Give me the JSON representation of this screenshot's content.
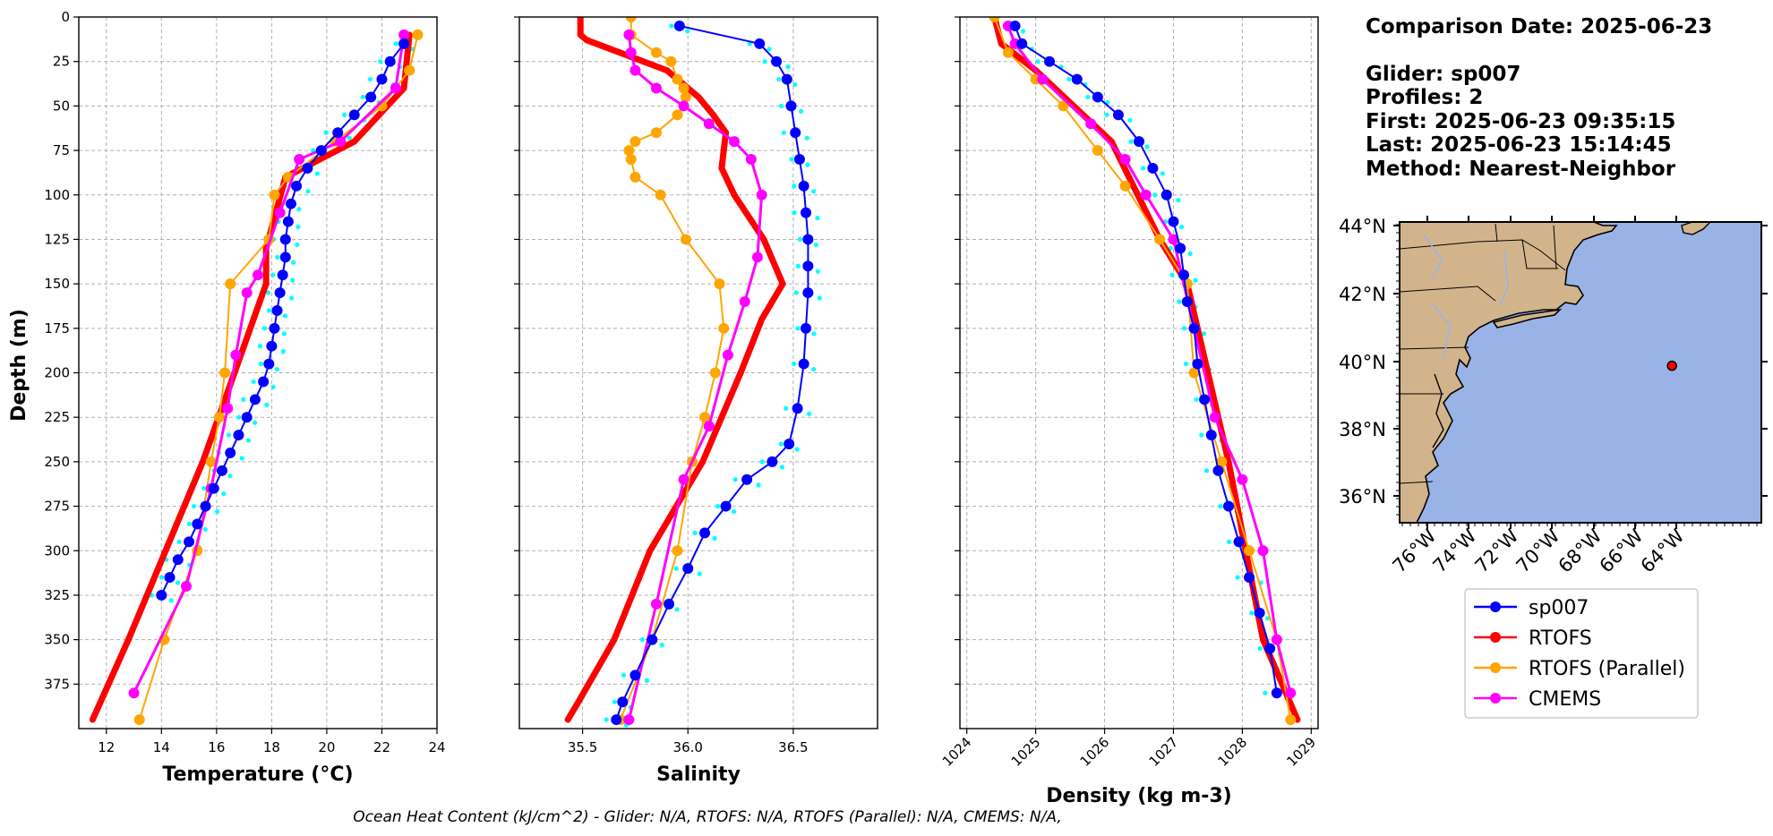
{
  "info": {
    "comparison_date": "Comparison Date: 2025-06-23",
    "glider": "Glider: sp007",
    "profiles": "Profiles: 2",
    "first": "First: 2025-06-23 09:35:15",
    "last": "Last: 2025-06-23 15:14:45",
    "method": "Method: Nearest-Neighbor"
  },
  "footer": "Ocean Heat Content (kJ/cm^2) - Glider: N/A,  RTOFS: N/A,  RTOFS (Parallel): N/A,  CMEMS: N/A,",
  "colors": {
    "glider": "#0000ff",
    "glider_raw": "#00ffff",
    "rtofs": "#ff0000",
    "rtofs_parallel": "#ffa500",
    "cmems": "#ff00ff",
    "land": "#d2b48c",
    "ocean": "#99b3e6",
    "grid": "#b0b0b0"
  },
  "legend": [
    {
      "label": "sp007",
      "color": "#0000ff"
    },
    {
      "label": "RTOFS",
      "color": "#ff0000"
    },
    {
      "label": "RTOFS (Parallel)",
      "color": "#ffa500"
    },
    {
      "label": "CMEMS",
      "color": "#ff00ff"
    }
  ],
  "depth_ticks": [
    "0",
    "25",
    "50",
    "75",
    "100",
    "125",
    "150",
    "175",
    "200",
    "225",
    "250",
    "275",
    "300",
    "325",
    "350",
    "375"
  ],
  "map": {
    "lat_labels": [
      "44°N",
      "42°N",
      "40°N",
      "38°N",
      "36°N"
    ],
    "lon_labels": [
      "76°W",
      "74°W",
      "72°W",
      "70°W",
      "68°W",
      "66°W",
      "64°W"
    ],
    "glider_position": {
      "lon": -64.2,
      "lat": 39.85
    }
  },
  "chart_data": [
    {
      "type": "line",
      "ylabel": "Depth (m)",
      "xlabel": "Temperature (°C)",
      "xlim": [
        11,
        24
      ],
      "ylim": [
        0,
        400
      ],
      "xticks": [
        "12",
        "14",
        "16",
        "18",
        "20",
        "22",
        "24"
      ],
      "y_inverted": true,
      "grid": true,
      "series": [
        {
          "name": "sp007",
          "x": [
            22.8,
            22.3,
            22.0,
            21.6,
            21.0,
            20.4,
            19.8,
            19.3,
            18.9,
            18.7,
            18.6,
            18.5,
            18.5,
            18.4,
            18.3,
            18.2,
            18.1,
            18.0,
            17.9,
            17.7,
            17.4,
            17.1,
            16.8,
            16.5,
            16.2,
            15.9,
            15.6,
            15.3,
            15.0,
            14.6,
            14.3,
            14.0
          ],
          "y": [
            15,
            25,
            35,
            45,
            55,
            65,
            75,
            85,
            95,
            105,
            115,
            125,
            135,
            145,
            155,
            165,
            175,
            185,
            195,
            205,
            215,
            225,
            235,
            245,
            255,
            265,
            275,
            285,
            295,
            305,
            315,
            325
          ]
        },
        {
          "name": "RTOFS",
          "x": [
            23.0,
            22.8,
            21.0,
            18.5,
            17.8,
            17.8,
            15.5,
            12.8,
            11.5
          ],
          "y": [
            10,
            40,
            70,
            90,
            130,
            150,
            250,
            350,
            395
          ]
        },
        {
          "name": "RTOFS (Parallel)",
          "x": [
            23.3,
            23.0,
            22.0,
            20.3,
            18.6,
            18.1,
            17.9,
            16.5,
            16.3,
            16.1,
            15.8,
            15.3,
            14.1,
            13.2
          ],
          "y": [
            10,
            30,
            50,
            70,
            90,
            100,
            125,
            150,
            200,
            225,
            250,
            300,
            350,
            395
          ]
        },
        {
          "name": "CMEMS",
          "x": [
            22.8,
            22.5,
            20.5,
            19.0,
            18.3,
            17.5,
            17.1,
            16.7,
            16.4,
            15.8,
            14.9,
            13.0
          ],
          "y": [
            10,
            40,
            70,
            80,
            110,
            145,
            155,
            190,
            220,
            265,
            320,
            380
          ]
        }
      ]
    },
    {
      "type": "line",
      "xlabel": "Salinity",
      "xlim": [
        35.2,
        36.9
      ],
      "ylim": [
        0,
        400
      ],
      "xticks": [
        "35.5",
        "36.0",
        "36.5"
      ],
      "y_inverted": true,
      "grid": true,
      "series": [
        {
          "name": "sp007",
          "x": [
            35.96,
            36.34,
            36.42,
            36.47,
            36.49,
            36.51,
            36.53,
            36.55,
            36.56,
            36.57,
            36.57,
            36.57,
            36.56,
            36.55,
            36.52,
            36.48,
            36.4,
            36.28,
            36.18,
            36.08,
            36.0,
            35.91,
            35.83,
            35.75,
            35.69,
            35.66
          ],
          "y": [
            5,
            15,
            25,
            35,
            50,
            65,
            80,
            95,
            110,
            125,
            140,
            155,
            175,
            195,
            220,
            240,
            250,
            260,
            275,
            290,
            310,
            330,
            350,
            370,
            385,
            395
          ]
        },
        {
          "name": "RTOFS",
          "x": [
            35.49,
            35.49,
            35.52,
            35.9,
            36.05,
            36.12,
            36.18,
            36.17,
            36.16,
            36.22,
            36.36,
            36.45,
            36.35,
            36.25,
            36.07,
            35.82,
            35.65,
            35.48,
            35.43
          ],
          "y": [
            0,
            10,
            13,
            30,
            45,
            55,
            65,
            75,
            85,
            100,
            125,
            150,
            170,
            200,
            250,
            300,
            350,
            385,
            395
          ]
        },
        {
          "name": "RTOFS (Parallel)",
          "x": [
            35.73,
            35.73,
            35.85,
            35.92,
            35.95,
            35.98,
            35.99,
            35.98,
            35.95,
            35.85,
            35.75,
            35.72,
            35.73,
            35.75,
            35.87,
            35.99,
            36.15,
            36.17,
            36.13,
            36.08,
            36.02,
            35.95,
            35.83,
            35.68
          ],
          "y": [
            0,
            10,
            20,
            25,
            35,
            40,
            45,
            50,
            55,
            65,
            70,
            75,
            80,
            90,
            100,
            125,
            150,
            175,
            200,
            225,
            250,
            300,
            350,
            395
          ]
        },
        {
          "name": "CMEMS",
          "x": [
            35.72,
            35.73,
            35.75,
            35.85,
            35.98,
            36.1,
            36.22,
            36.3,
            36.35,
            36.33,
            36.27,
            36.19,
            36.1,
            35.98,
            35.85,
            35.72
          ],
          "y": [
            10,
            20,
            30,
            40,
            50,
            60,
            70,
            80,
            100,
            135,
            160,
            190,
            230,
            260,
            330,
            395
          ]
        }
      ]
    },
    {
      "type": "line",
      "xlabel": "Density (kg m-3)",
      "xlim": [
        1023.9,
        1029.1
      ],
      "ylim": [
        0,
        400
      ],
      "xticks": [
        "1024",
        "1025",
        "1026",
        "1027",
        "1028",
        "1029"
      ],
      "y_inverted": true,
      "grid": true,
      "series": [
        {
          "name": "sp007",
          "x": [
            1024.7,
            1024.8,
            1025.2,
            1025.6,
            1025.9,
            1026.2,
            1026.5,
            1026.7,
            1026.9,
            1027.0,
            1027.1,
            1027.15,
            1027.2,
            1027.3,
            1027.35,
            1027.45,
            1027.55,
            1027.65,
            1027.8,
            1027.95,
            1028.1,
            1028.25,
            1028.4,
            1028.5
          ],
          "y": [
            5,
            15,
            25,
            35,
            45,
            55,
            70,
            85,
            100,
            115,
            130,
            145,
            160,
            175,
            195,
            215,
            235,
            255,
            275,
            295,
            315,
            335,
            355,
            380
          ]
        },
        {
          "name": "RTOFS",
          "x": [
            1024.4,
            1024.5,
            1025.0,
            1026.1,
            1026.8,
            1027.2,
            1027.8,
            1028.3,
            1028.8
          ],
          "y": [
            0,
            15,
            30,
            70,
            125,
            150,
            250,
            350,
            395
          ]
        },
        {
          "name": "RTOFS (Parallel)",
          "x": [
            1024.4,
            1024.6,
            1025.0,
            1025.4,
            1025.9,
            1026.3,
            1026.8,
            1027.2,
            1027.3,
            1027.7,
            1028.1,
            1028.5,
            1028.7
          ],
          "y": [
            0,
            20,
            35,
            50,
            75,
            95,
            125,
            150,
            200,
            250,
            300,
            350,
            395
          ]
        },
        {
          "name": "CMEMS",
          "x": [
            1024.6,
            1024.7,
            1025.1,
            1025.8,
            1026.3,
            1026.6,
            1027.0,
            1027.3,
            1027.6,
            1028.0,
            1028.3,
            1028.5,
            1028.7
          ],
          "y": [
            5,
            15,
            35,
            60,
            80,
            100,
            125,
            175,
            225,
            260,
            300,
            350,
            380
          ]
        }
      ]
    }
  ]
}
